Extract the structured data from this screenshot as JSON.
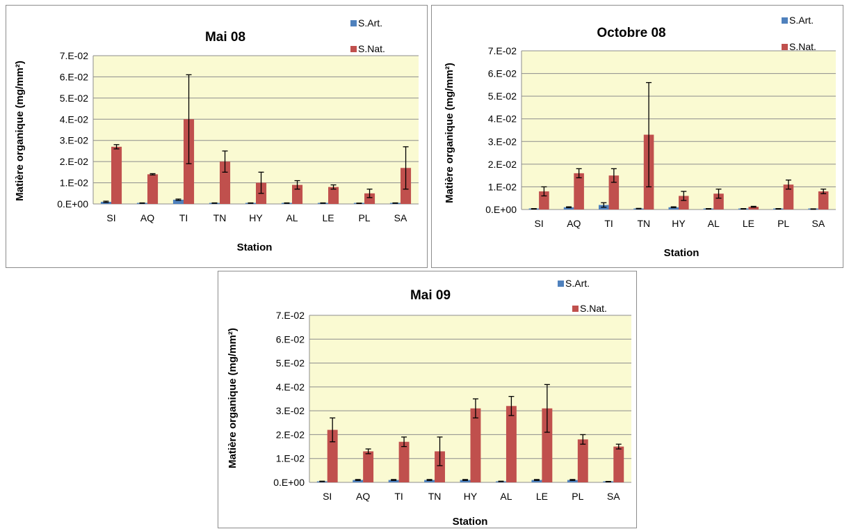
{
  "colors": {
    "s_art": "#4f81bd",
    "s_nat": "#c0504d",
    "plot_bg": "#fafad2",
    "grid": "#8c8c8c",
    "error_bar": "#000000"
  },
  "chart_data": [
    {
      "type": "bar",
      "title": "Mai 08",
      "xlabel": "Station",
      "ylabel": "Matière organique (mg/mm²)",
      "ylim": [
        0,
        0.07
      ],
      "yticks": [
        "0.E+00",
        "1.E-02",
        "2.E-02",
        "3.E-02",
        "4.E-02",
        "5.E-02",
        "6.E-02",
        "7.E-02"
      ],
      "grid": true,
      "legend": "top-right",
      "categories": [
        "SI",
        "AQ",
        "TI",
        "TN",
        "HY",
        "AL",
        "LE",
        "PL",
        "SA"
      ],
      "series": [
        {
          "name": "S.Art.",
          "color": "#4f81bd",
          "values": [
            0.001,
            0.0004,
            0.002,
            0.0004,
            0.0004,
            0.0004,
            0.0004,
            0.0003,
            0.0004
          ],
          "errors": [
            0.0003,
            0.0001,
            0.0003,
            0.0001,
            0.0001,
            0.0001,
            0.0001,
            0.0001,
            0.0001
          ]
        },
        {
          "name": "S.Nat.",
          "color": "#c0504d",
          "values": [
            0.027,
            0.014,
            0.04,
            0.02,
            0.01,
            0.009,
            0.008,
            0.005,
            0.017
          ],
          "errors": [
            0.001,
            0.0003,
            0.021,
            0.005,
            0.005,
            0.002,
            0.001,
            0.002,
            0.01
          ]
        }
      ]
    },
    {
      "type": "bar",
      "title": "Octobre 08",
      "xlabel": "Station",
      "ylabel": "Matière organique (mg/mm²)",
      "ylim": [
        0,
        0.07
      ],
      "yticks": [
        "0.E+00",
        "1.E-02",
        "2.E-02",
        "3.E-02",
        "4.E-02",
        "5.E-02",
        "6.E-02",
        "7.E-02"
      ],
      "grid": true,
      "legend": "top-right",
      "categories": [
        "SI",
        "AQ",
        "TI",
        "TN",
        "HY",
        "AL",
        "LE",
        "PL",
        "SA"
      ],
      "series": [
        {
          "name": "S.Art.",
          "color": "#4f81bd",
          "values": [
            0.0003,
            0.001,
            0.002,
            0.0004,
            0.001,
            0.0003,
            0.0003,
            0.0003,
            0.0002
          ],
          "errors": [
            0.0001,
            0.0002,
            0.001,
            0.0001,
            0.0002,
            0.0001,
            0.0001,
            0.0001,
            0.0001
          ]
        },
        {
          "name": "S.Nat.",
          "color": "#c0504d",
          "values": [
            0.008,
            0.016,
            0.015,
            0.033,
            0.006,
            0.007,
            0.0012,
            0.011,
            0.008
          ],
          "errors": [
            0.002,
            0.002,
            0.003,
            0.023,
            0.002,
            0.002,
            0.0002,
            0.002,
            0.001
          ]
        }
      ]
    },
    {
      "type": "bar",
      "title": "Mai 09",
      "xlabel": "Station",
      "ylabel": "Matière organique (mg/mm²)",
      "ylim": [
        0,
        0.07
      ],
      "yticks": [
        "0.E+00",
        "1.E-02",
        "2.E-02",
        "3.E-02",
        "4.E-02",
        "5.E-02",
        "6.E-02",
        "7.E-02"
      ],
      "grid": true,
      "legend": "top-right",
      "categories": [
        "SI",
        "AQ",
        "TI",
        "TN",
        "HY",
        "AL",
        "LE",
        "PL",
        "SA"
      ],
      "series": [
        {
          "name": "S.Art.",
          "color": "#4f81bd",
          "values": [
            0.0004,
            0.001,
            0.001,
            0.001,
            0.001,
            0.0004,
            0.001,
            0.001,
            0.0003
          ],
          "errors": [
            0.0001,
            0.0002,
            0.0002,
            0.0002,
            0.0002,
            0.0001,
            0.0002,
            0.0002,
            0.0001
          ]
        },
        {
          "name": "S.Nat.",
          "color": "#c0504d",
          "values": [
            0.022,
            0.013,
            0.017,
            0.013,
            0.031,
            0.032,
            0.031,
            0.018,
            0.015
          ],
          "errors": [
            0.005,
            0.001,
            0.002,
            0.006,
            0.004,
            0.004,
            0.01,
            0.002,
            0.001
          ]
        }
      ]
    }
  ]
}
